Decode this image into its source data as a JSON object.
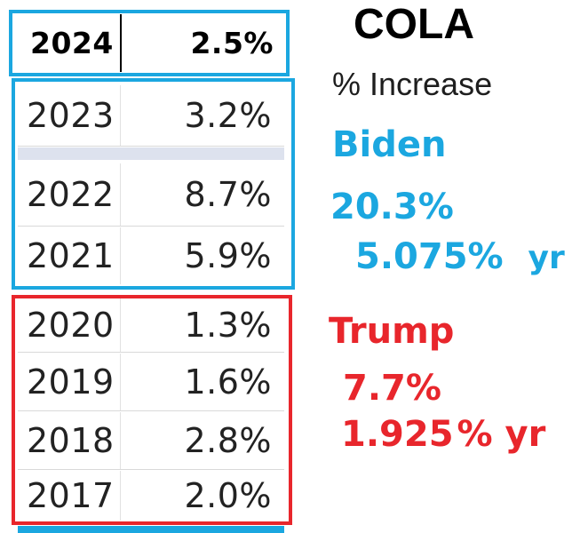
{
  "table": {
    "header_row": {
      "year": "2024",
      "percent": "2.5%"
    },
    "biden_rows": [
      {
        "year": "2023",
        "percent": "3.2%"
      },
      {
        "year": "2022",
        "percent": "8.7%"
      },
      {
        "year": "2021",
        "percent": "5.9%"
      }
    ],
    "trump_rows": [
      {
        "year": "2020",
        "percent": "1.3%"
      },
      {
        "year": "2019",
        "percent": "1.6%"
      },
      {
        "year": "2018",
        "percent": "2.8%"
      },
      {
        "year": "2017",
        "percent": "2.0%"
      }
    ]
  },
  "title": "COLA",
  "subtitle": "% Increase",
  "biden": {
    "name": "Biden",
    "total": "20.3%",
    "per_year": "5.075%",
    "per_year_unit": "yr",
    "color": "#1ba7e0"
  },
  "trump": {
    "name": "Trump",
    "total": "7.7%",
    "per_year": "1.925",
    "per_year_unit": "% yr",
    "color": "#e8262c"
  }
}
